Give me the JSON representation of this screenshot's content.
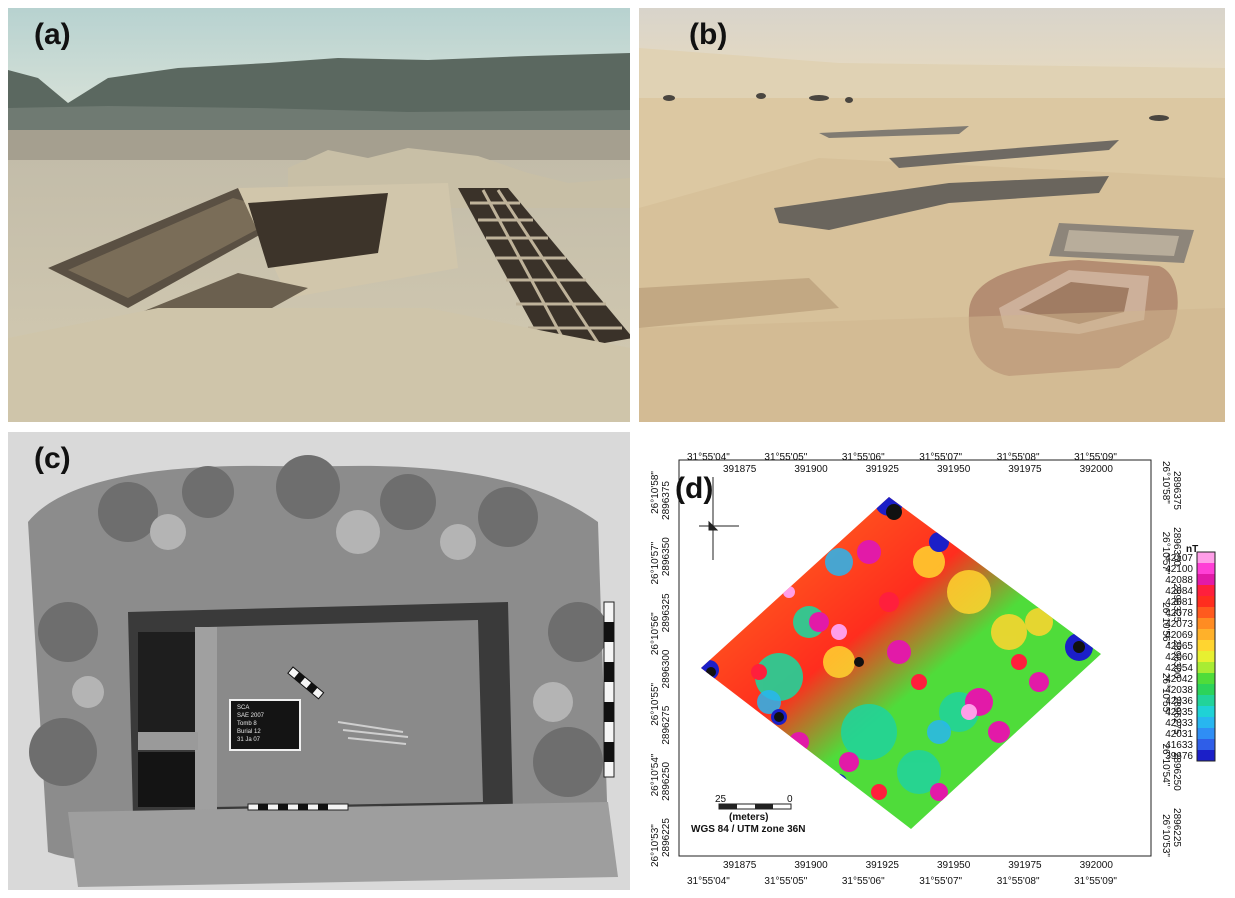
{
  "panels": {
    "a": {
      "label": "(a)"
    },
    "b": {
      "label": "(b)"
    },
    "c": {
      "label": "(c)",
      "slate_lines": [
        "SCA",
        "SAE 2007",
        "Tomb 8",
        "Burial 12",
        "31 Ja 07"
      ]
    },
    "d": {
      "label": "(d)",
      "top_geo_labels": [
        "31°55'04\"",
        "31°55'05\"",
        "31°55'06\"",
        "31°55'07\"",
        "31°55'08\"",
        "31°55'09\""
      ],
      "top_utm_labels": [
        "391875",
        "391900",
        "391925",
        "391950",
        "391975",
        "392000"
      ],
      "bottom_geo_labels": [
        "31°55'04\"",
        "31°55'05\"",
        "31°55'06\"",
        "31°55'07\"",
        "31°55'08\"",
        "31°55'09\""
      ],
      "bottom_utm_labels": [
        "391875",
        "391900",
        "391925",
        "391950",
        "391975",
        "392000"
      ],
      "left_geo_labels": [
        "26°10'58\"",
        "26°10'57\"",
        "26°10'56\"",
        "26°10'55\"",
        "26°10'54\"",
        "26°10'53\""
      ],
      "left_utm_labels": [
        "2896375",
        "2896350",
        "2896325",
        "2896300",
        "2896275",
        "2896250",
        "2896225"
      ],
      "right_geo_labels": [
        "26°10'58\"",
        "26°10'57\"",
        "26°10'56\"",
        "26°10'55\"",
        "26°10'54\"",
        "26°10'53\""
      ],
      "right_utm_labels": [
        "2896375",
        "2896350",
        "2896325",
        "2896300",
        "2896275",
        "2896250",
        "2896225"
      ],
      "scale_left": "25",
      "scale_right": "0",
      "scale_unit": "(meters)",
      "projection": "WGS 84 / UTM zone 36N",
      "colorbar_unit": "nT",
      "colorbar_values": [
        "42107",
        "42100",
        "42088",
        "42084",
        "42081",
        "42078",
        "42073",
        "42069",
        "42065",
        "42060",
        "42054",
        "42042",
        "42038",
        "42036",
        "42035",
        "42033",
        "42031",
        "41633",
        "39676"
      ],
      "colorbar_colors": [
        "#ff9ee8",
        "#ff3fd6",
        "#e21aa8",
        "#ff1f3c",
        "#ff2d1e",
        "#ff5a1e",
        "#ff8c22",
        "#ffb12a",
        "#ffd530",
        "#e7f031",
        "#a8ec33",
        "#4fdc3a",
        "#2cd35a",
        "#22d39a",
        "#1fd2d6",
        "#28b6f0",
        "#2f8ef5",
        "#2f5ee8",
        "#1b1fc8"
      ]
    }
  }
}
